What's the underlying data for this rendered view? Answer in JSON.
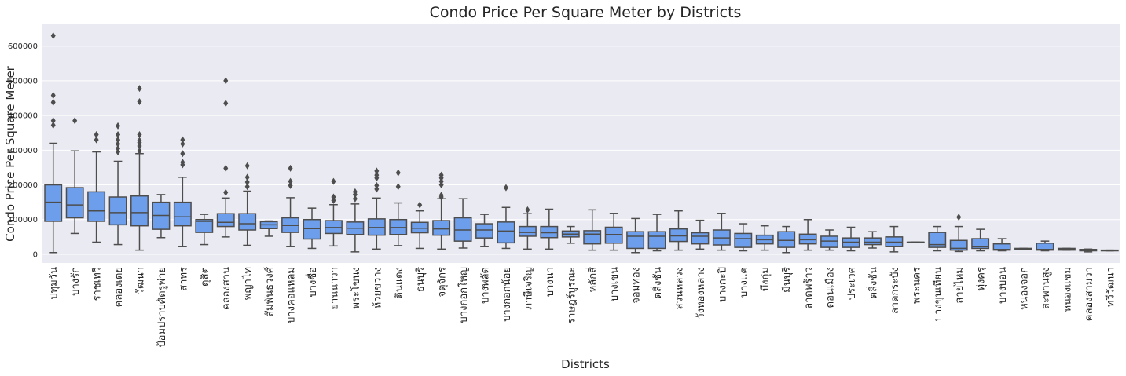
{
  "chart_data": {
    "type": "box",
    "title": "Condo Price Per Square Meter by Districts",
    "xlabel": "Districts",
    "ylabel": "Condo Price Per Square Meter",
    "ylim": [
      -25000,
      665000
    ],
    "yticks": [
      0,
      100000,
      200000,
      300000,
      400000,
      500000,
      600000
    ],
    "ytick_labels": [
      "0",
      "100000",
      "200000",
      "300000",
      "400000",
      "500000",
      "600000"
    ],
    "grid": true,
    "box_color": "#6d9eeb",
    "line_color": "#4d4d4d",
    "background_color": "#eaeaf2",
    "categories": [
      "ปทุมวัน",
      "บางรัก",
      "ราชเทวี",
      "คลองเตย",
      "วัฒนา",
      "ป้อมปราบศัตรูพ่าย",
      "สาทร",
      "ดุสิต",
      "คลองสาน",
      "พญาไท",
      "สัมพันธวงศ์",
      "บางคอแหลม",
      "บางซื่อ",
      "ยานนาวา",
      "พระโขนง",
      "ห้วยขวาง",
      "ดินแดง",
      "ธนบุรี",
      "จตุจักร",
      "บางกอกใหญ่",
      "บางพลัด",
      "บางกอกน้อย",
      "ภาษีเจริญ",
      "บางนา",
      "ราษฎร์บูรณะ",
      "หลักสี่",
      "บางเขน",
      "จอมทอง",
      "ตลิ่งชัน",
      "สวนหลวง",
      "วังทองหลาง",
      "บางกะปิ",
      "บางแค",
      "บึงกุ่ม",
      "มีนบุรี",
      "ลาดพร้าว",
      "ดอนเมือง",
      "ประเวศ",
      "ตลิ่งชัน",
      "ลาดกระบัง",
      "พระนคร",
      "บางขุนเทียน",
      "สายไหม",
      "ทุ่งครุ",
      "บางบอน",
      "หนองจอก",
      "สะพานสูง",
      "หนองแขม",
      "คลองสามวา",
      "ทวีวัฒนา"
    ],
    "boxes": [
      {
        "whislo": 5000,
        "q1": 95000,
        "med": 150000,
        "q3": 200000,
        "whishi": 320000,
        "fliers": [
          372000,
          385000,
          438000,
          458000,
          630000
        ]
      },
      {
        "whislo": 60000,
        "q1": 105000,
        "med": 142000,
        "q3": 192000,
        "whishi": 298000,
        "fliers": [
          385000
        ]
      },
      {
        "whislo": 35000,
        "q1": 95000,
        "med": 125000,
        "q3": 180000,
        "whishi": 295000,
        "fliers": [
          330000,
          345000
        ]
      },
      {
        "whislo": 28000,
        "q1": 85000,
        "med": 120000,
        "q3": 165000,
        "whishi": 268000,
        "fliers": [
          295000,
          305000,
          318000,
          330000,
          345000,
          370000
        ]
      },
      {
        "whislo": 12000,
        "q1": 82000,
        "med": 120000,
        "q3": 168000,
        "whishi": 290000,
        "fliers": [
          298000,
          312000,
          322000,
          328000,
          345000,
          440000,
          478000
        ]
      },
      {
        "whislo": 48000,
        "q1": 72000,
        "med": 112000,
        "q3": 150000,
        "whishi": 172000,
        "fliers": []
      },
      {
        "whislo": 22000,
        "q1": 82000,
        "med": 108000,
        "q3": 150000,
        "whishi": 222000,
        "fliers": [
          258000,
          265000,
          290000,
          318000,
          330000
        ]
      },
      {
        "whislo": 28000,
        "q1": 63000,
        "med": 95000,
        "q3": 100000,
        "whishi": 115000,
        "fliers": []
      },
      {
        "whislo": 50000,
        "q1": 80000,
        "med": 92000,
        "q3": 117000,
        "whishi": 162000,
        "fliers": [
          178000,
          248000,
          435000,
          500000
        ]
      },
      {
        "whislo": 26000,
        "q1": 70000,
        "med": 88000,
        "q3": 117000,
        "whishi": 182000,
        "fliers": [
          195000,
          208000,
          222000,
          255000
        ]
      },
      {
        "whislo": 52000,
        "q1": 74000,
        "med": 85000,
        "q3": 94000,
        "whishi": 96000,
        "fliers": []
      },
      {
        "whislo": 22000,
        "q1": 63000,
        "med": 83000,
        "q3": 105000,
        "whishi": 163000,
        "fliers": [
          198000,
          210000,
          248000
        ]
      },
      {
        "whislo": 17000,
        "q1": 44000,
        "med": 74000,
        "q3": 100000,
        "whishi": 133000,
        "fliers": []
      },
      {
        "whislo": 24000,
        "q1": 60000,
        "med": 77000,
        "q3": 97000,
        "whishi": 143000,
        "fliers": [
          155000,
          165000,
          210000
        ]
      },
      {
        "whislo": 7000,
        "q1": 57000,
        "med": 75000,
        "q3": 93000,
        "whishi": 145000,
        "fliers": [
          160000,
          172000,
          180000
        ]
      },
      {
        "whislo": 15000,
        "q1": 55000,
        "med": 77000,
        "q3": 102000,
        "whishi": 162000,
        "fliers": [
          188000,
          198000,
          220000,
          228000,
          240000
        ]
      },
      {
        "whislo": 25000,
        "q1": 57000,
        "med": 77000,
        "q3": 100000,
        "whishi": 148000,
        "fliers": [
          195000,
          235000
        ]
      },
      {
        "whislo": 17000,
        "q1": 62000,
        "med": 75000,
        "q3": 92000,
        "whishi": 125000,
        "fliers": [
          142000
        ]
      },
      {
        "whislo": 15000,
        "q1": 55000,
        "med": 73000,
        "q3": 97000,
        "whishi": 160000,
        "fliers": [
          165000,
          170000,
          200000,
          210000,
          220000,
          228000
        ]
      },
      {
        "whislo": 18000,
        "q1": 38000,
        "med": 70000,
        "q3": 105000,
        "whishi": 160000,
        "fliers": []
      },
      {
        "whislo": 22000,
        "q1": 47000,
        "med": 70000,
        "q3": 88000,
        "whishi": 115000,
        "fliers": []
      },
      {
        "whislo": 17000,
        "q1": 33000,
        "med": 67000,
        "q3": 93000,
        "whishi": 135000,
        "fliers": [
          192000
        ]
      },
      {
        "whislo": 15000,
        "q1": 52000,
        "med": 63000,
        "q3": 80000,
        "whishi": 117000,
        "fliers": [
          128000
        ]
      },
      {
        "whislo": 15000,
        "q1": 48000,
        "med": 62000,
        "q3": 80000,
        "whishi": 130000,
        "fliers": []
      },
      {
        "whislo": 32000,
        "q1": 50000,
        "med": 58000,
        "q3": 67000,
        "whishi": 80000,
        "fliers": []
      },
      {
        "whislo": 12000,
        "q1": 30000,
        "med": 58000,
        "q3": 68000,
        "whishi": 128000,
        "fliers": []
      },
      {
        "whislo": 12000,
        "q1": 32000,
        "med": 57000,
        "q3": 78000,
        "whishi": 118000,
        "fliers": []
      },
      {
        "whislo": 5000,
        "q1": 17000,
        "med": 52000,
        "q3": 65000,
        "whishi": 103000,
        "fliers": []
      },
      {
        "whislo": 10000,
        "q1": 17000,
        "med": 52000,
        "q3": 65000,
        "whishi": 115000,
        "fliers": []
      },
      {
        "whislo": 12000,
        "q1": 37000,
        "med": 53000,
        "q3": 73000,
        "whishi": 125000,
        "fliers": []
      },
      {
        "whislo": 15000,
        "q1": 30000,
        "med": 52000,
        "q3": 62000,
        "whishi": 98000,
        "fliers": []
      },
      {
        "whislo": 12000,
        "q1": 27000,
        "med": 47000,
        "q3": 70000,
        "whishi": 118000,
        "fliers": []
      },
      {
        "whislo": 10000,
        "q1": 20000,
        "med": 45000,
        "q3": 60000,
        "whishi": 88000,
        "fliers": []
      },
      {
        "whislo": 12000,
        "q1": 30000,
        "med": 42000,
        "q3": 55000,
        "whishi": 82000,
        "fliers": []
      },
      {
        "whislo": 5000,
        "q1": 20000,
        "med": 40000,
        "q3": 65000,
        "whishi": 80000,
        "fliers": []
      },
      {
        "whislo": 12000,
        "q1": 30000,
        "med": 42000,
        "q3": 58000,
        "whishi": 100000,
        "fliers": []
      },
      {
        "whislo": 12000,
        "q1": 20000,
        "med": 38000,
        "q3": 52000,
        "whishi": 70000,
        "fliers": []
      },
      {
        "whislo": 10000,
        "q1": 20000,
        "med": 35000,
        "q3": 47000,
        "whishi": 78000,
        "fliers": []
      },
      {
        "whislo": 18000,
        "q1": 28000,
        "med": 35000,
        "q3": 47000,
        "whishi": 65000,
        "fliers": []
      },
      {
        "whislo": 7000,
        "q1": 22000,
        "med": 35000,
        "q3": 50000,
        "whishi": 80000,
        "fliers": []
      },
      {
        "whislo": 35000,
        "q1": 35000,
        "med": 35000,
        "q3": 35000,
        "whishi": 35000,
        "fliers": []
      },
      {
        "whislo": 10000,
        "q1": 20000,
        "med": 28000,
        "q3": 63000,
        "whishi": 80000,
        "fliers": []
      },
      {
        "whislo": 8000,
        "q1": 12000,
        "med": 17000,
        "q3": 40000,
        "whishi": 80000,
        "fliers": [
          107000
        ]
      },
      {
        "whislo": 10000,
        "q1": 17000,
        "med": 22000,
        "q3": 45000,
        "whishi": 72000,
        "fliers": []
      },
      {
        "whislo": 10000,
        "q1": 12000,
        "med": 14000,
        "q3": 30000,
        "whishi": 45000,
        "fliers": []
      },
      {
        "whislo": 15000,
        "q1": 15000,
        "med": 16000,
        "q3": 17000,
        "whishi": 17000,
        "fliers": []
      },
      {
        "whislo": 10000,
        "q1": 12000,
        "med": 14000,
        "q3": 32000,
        "whishi": 38000,
        "fliers": []
      },
      {
        "whislo": 12000,
        "q1": 12000,
        "med": 14000,
        "q3": 17000,
        "whishi": 17000,
        "fliers": []
      },
      {
        "whislo": 7000,
        "q1": 10000,
        "med": 12000,
        "q3": 14000,
        "whishi": 15000,
        "fliers": []
      },
      {
        "whislo": 10000,
        "q1": 10000,
        "med": 11000,
        "q3": 12000,
        "whishi": 12000,
        "fliers": []
      }
    ]
  }
}
